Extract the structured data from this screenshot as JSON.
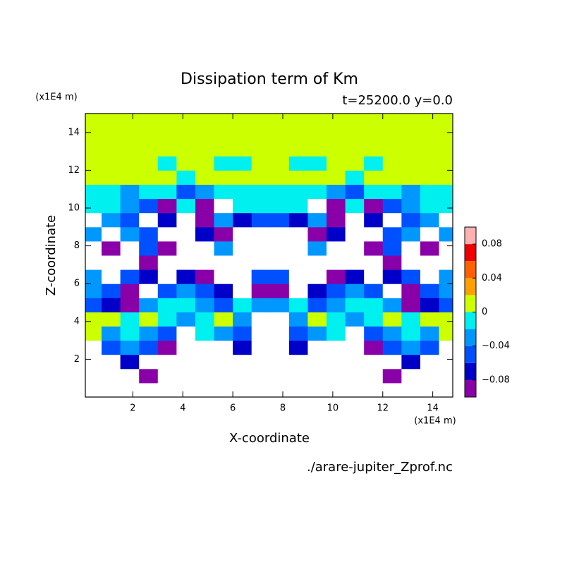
{
  "chart_data": {
    "type": "contour",
    "title": "Dissipation term of Km",
    "subtitle": "t=25200.0 y=0.0",
    "x_label": "X-coordinate",
    "y_label": "Z-coordinate",
    "x_unit": "(x1E4 m)",
    "y_unit": "(x1E4 m)",
    "source": "./arare-jupiter_Zprof.nc",
    "xlim": [
      0.1,
      14.8
    ],
    "ylim": [
      0,
      15
    ],
    "xticks": [
      2,
      4,
      6,
      8,
      10,
      12,
      14
    ],
    "yticks": [
      2,
      4,
      6,
      8,
      10,
      12,
      14
    ],
    "x": [
      0.375,
      1.125,
      1.875,
      2.625,
      3.375,
      4.125,
      4.875,
      5.625,
      6.375,
      7.125,
      7.875,
      8.625,
      9.375,
      10.125,
      10.875,
      11.625,
      12.375,
      13.125,
      13.875,
      14.625
    ],
    "z": [
      0.375,
      1.125,
      1.875,
      2.625,
      3.375,
      4.125,
      4.875,
      5.625,
      6.375,
      7.125,
      7.875,
      8.625,
      9.375,
      10.125,
      10.875,
      11.625,
      12.375,
      13.125,
      13.875,
      14.625
    ],
    "values": [
      [
        -0.15,
        -0.15,
        -0.15,
        -0.15,
        -0.15,
        -0.15,
        -0.15,
        -0.15,
        -0.15,
        -0.15,
        -0.15,
        -0.15,
        -0.15,
        -0.15,
        -0.15,
        -0.15,
        -0.15,
        -0.15,
        -0.15,
        -0.15
      ],
      [
        -0.15,
        -0.15,
        -0.15,
        -0.09,
        -0.15,
        -0.15,
        -0.15,
        -0.15,
        -0.15,
        -0.15,
        -0.15,
        -0.15,
        -0.15,
        -0.15,
        -0.15,
        -0.15,
        -0.09,
        -0.15,
        -0.15,
        -0.15
      ],
      [
        -0.15,
        -0.15,
        -0.07,
        -0.15,
        -0.15,
        -0.15,
        -0.15,
        -0.15,
        -0.15,
        -0.15,
        -0.15,
        -0.15,
        -0.15,
        -0.15,
        -0.15,
        -0.15,
        -0.15,
        -0.07,
        -0.15,
        -0.15
      ],
      [
        -0.15,
        -0.05,
        -0.03,
        -0.05,
        -0.09,
        -0.15,
        -0.15,
        -0.15,
        -0.07,
        -0.15,
        -0.15,
        -0.07,
        -0.15,
        -0.15,
        -0.15,
        -0.09,
        -0.05,
        -0.03,
        -0.05,
        -0.15
      ],
      [
        0.01,
        -0.03,
        -0.01,
        -0.03,
        -0.05,
        -0.15,
        -0.01,
        -0.03,
        -0.05,
        -0.15,
        -0.15,
        -0.05,
        -0.03,
        -0.01,
        -0.15,
        -0.05,
        -0.03,
        -0.01,
        -0.03,
        0.01
      ],
      [
        0.01,
        0.01,
        -0.01,
        0.01,
        -0.01,
        -0.03,
        -0.01,
        0.01,
        -0.03,
        -0.15,
        -0.15,
        -0.03,
        0.01,
        -0.01,
        -0.03,
        -0.01,
        0.01,
        -0.01,
        0.01,
        0.01
      ],
      [
        -0.05,
        -0.07,
        -0.09,
        -0.03,
        -0.01,
        -0.01,
        -0.03,
        -0.05,
        -0.01,
        -0.03,
        -0.03,
        -0.01,
        -0.05,
        -0.03,
        -0.01,
        -0.01,
        -0.03,
        -0.09,
        -0.07,
        -0.05
      ],
      [
        -0.03,
        -0.05,
        -0.09,
        -0.15,
        -0.05,
        -0.03,
        -0.05,
        -0.07,
        -0.15,
        -0.09,
        -0.09,
        -0.15,
        -0.07,
        -0.05,
        -0.03,
        -0.05,
        -0.15,
        -0.09,
        -0.05,
        -0.03
      ],
      [
        -0.03,
        -0.15,
        -0.05,
        -0.07,
        -0.15,
        -0.07,
        -0.09,
        -0.15,
        -0.15,
        -0.05,
        -0.05,
        -0.15,
        -0.15,
        -0.09,
        -0.07,
        -0.15,
        -0.07,
        -0.05,
        -0.15,
        -0.03
      ],
      [
        -0.15,
        -0.15,
        -0.15,
        -0.09,
        -0.15,
        -0.15,
        -0.15,
        -0.15,
        -0.15,
        -0.15,
        -0.15,
        -0.15,
        -0.15,
        -0.15,
        -0.15,
        -0.15,
        -0.09,
        -0.15,
        -0.15,
        -0.15
      ],
      [
        -0.15,
        -0.09,
        -0.15,
        -0.05,
        -0.09,
        -0.15,
        -0.15,
        -0.03,
        -0.15,
        -0.15,
        -0.15,
        -0.15,
        -0.03,
        -0.15,
        -0.15,
        -0.09,
        -0.05,
        -0.15,
        -0.09,
        -0.15
      ],
      [
        -0.03,
        -0.15,
        -0.03,
        -0.05,
        -0.15,
        -0.15,
        -0.07,
        -0.09,
        -0.15,
        -0.15,
        -0.15,
        -0.15,
        -0.09,
        -0.07,
        -0.15,
        -0.15,
        -0.05,
        -0.03,
        -0.15,
        -0.03
      ],
      [
        -0.15,
        -0.03,
        -0.05,
        -0.15,
        -0.07,
        -0.15,
        -0.09,
        -0.03,
        -0.07,
        -0.05,
        -0.05,
        -0.07,
        -0.03,
        -0.09,
        -0.15,
        -0.07,
        -0.15,
        -0.05,
        -0.03,
        -0.15
      ],
      [
        -0.01,
        -0.01,
        -0.03,
        -0.05,
        -0.09,
        -0.01,
        -0.09,
        -0.15,
        -0.01,
        -0.01,
        -0.01,
        -0.01,
        -0.15,
        -0.09,
        -0.01,
        -0.09,
        -0.05,
        -0.03,
        -0.01,
        -0.01
      ],
      [
        -0.01,
        -0.01,
        -0.03,
        -0.01,
        -0.01,
        -0.05,
        -0.03,
        -0.01,
        -0.01,
        -0.01,
        -0.01,
        -0.01,
        -0.01,
        -0.03,
        -0.05,
        -0.01,
        -0.01,
        -0.03,
        -0.01,
        -0.01
      ],
      [
        0.01,
        0.01,
        0.01,
        0.01,
        0.01,
        -0.01,
        0.01,
        0.01,
        0.01,
        0.01,
        0.01,
        0.01,
        0.01,
        0.01,
        -0.01,
        0.01,
        0.01,
        0.01,
        0.01,
        0.01
      ],
      [
        0.01,
        0.01,
        0.01,
        0.01,
        -0.01,
        0.01,
        0.01,
        -0.01,
        -0.01,
        0.01,
        0.01,
        -0.01,
        -0.01,
        0.01,
        0.01,
        -0.01,
        0.01,
        0.01,
        0.01,
        0.01
      ],
      [
        0.01,
        0.01,
        0.01,
        0.01,
        0.01,
        0.01,
        0.01,
        0.01,
        0.01,
        0.01,
        0.01,
        0.01,
        0.01,
        0.01,
        0.01,
        0.01,
        0.01,
        0.01,
        0.01,
        0.01
      ],
      [
        0.01,
        0.01,
        0.01,
        0.01,
        0.01,
        0.01,
        0.01,
        0.01,
        0.01,
        0.01,
        0.01,
        0.01,
        0.01,
        0.01,
        0.01,
        0.01,
        0.01,
        0.01,
        0.01,
        0.01
      ],
      [
        0.01,
        0.01,
        0.01,
        0.01,
        0.01,
        0.01,
        0.01,
        0.01,
        0.01,
        0.01,
        0.01,
        0.01,
        0.01,
        0.01,
        0.01,
        0.01,
        0.01,
        0.01,
        0.01,
        0.01
      ]
    ],
    "levels": [
      -0.1,
      -0.08,
      -0.06,
      -0.04,
      -0.02,
      0,
      0.02,
      0.04,
      0.06,
      0.08,
      0.1
    ],
    "colors": [
      "#8a00a8",
      "#0000c8",
      "#0050ff",
      "#0098ff",
      "#00f0f0",
      "#ccff00",
      "#ffa000",
      "#ff6000",
      "#f00000",
      "#ffb0b0"
    ],
    "below_color": "#ffffff",
    "colorbar_ticks": [
      {
        "value": -0.08,
        "label": "−0.08"
      },
      {
        "value": -0.04,
        "label": "−0.04"
      },
      0,
      0.04,
      0.08
    ]
  }
}
